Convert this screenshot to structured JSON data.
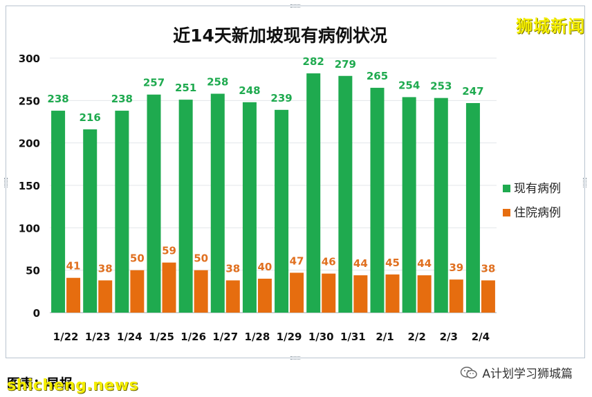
{
  "watermark": "狮城新闻",
  "footer": {
    "source_label": "图表：早报",
    "brand": "shicheng.news",
    "account": "A计划学习狮城篇"
  },
  "colors": {
    "current": "#1faa4f",
    "hospital": "#e66d0f",
    "current_label": "#1faa4f",
    "hospital_label": "#e07020"
  },
  "chart_data": {
    "type": "bar",
    "title": "近14天新加坡现有病例状况",
    "categories": [
      "1/22",
      "1/23",
      "1/24",
      "1/25",
      "1/26",
      "1/27",
      "1/28",
      "1/29",
      "1/30",
      "1/31",
      "2/1",
      "2/2",
      "2/3",
      "2/4"
    ],
    "series": [
      {
        "name": "现有病例",
        "values": [
          238,
          216,
          238,
          257,
          251,
          258,
          248,
          239,
          282,
          279,
          265,
          254,
          253,
          247
        ]
      },
      {
        "name": "住院病例",
        "values": [
          41,
          38,
          50,
          59,
          50,
          38,
          40,
          47,
          46,
          44,
          45,
          44,
          39,
          38
        ]
      }
    ],
    "ylim": [
      0,
      300
    ],
    "yticks": [
      0,
      50,
      100,
      150,
      200,
      250,
      300
    ],
    "grid": true,
    "legend": "right"
  }
}
